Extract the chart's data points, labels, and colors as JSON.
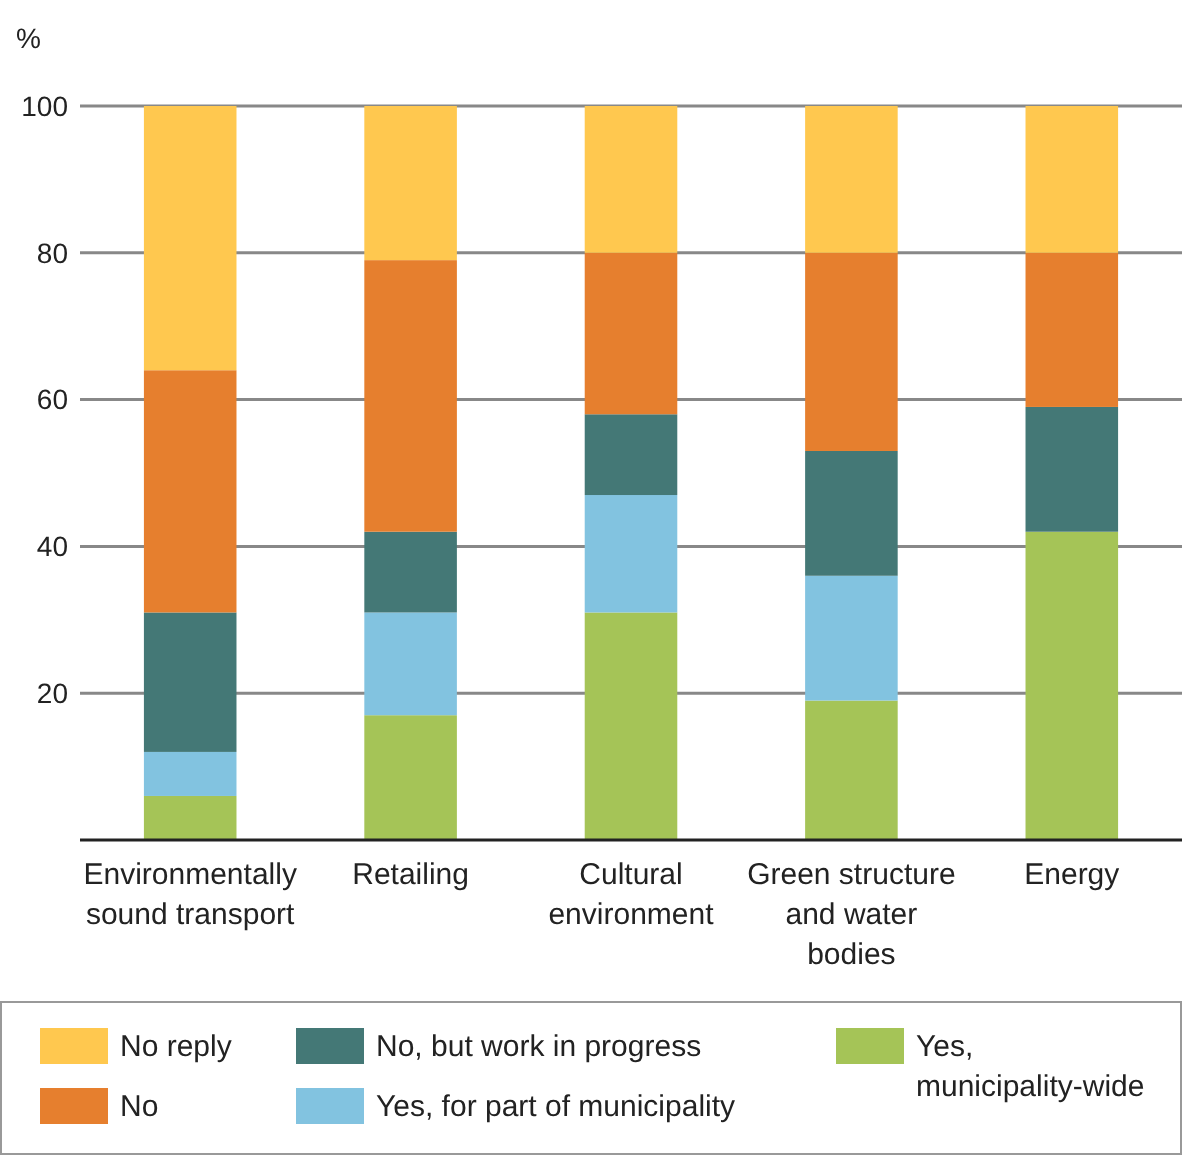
{
  "chart_data": {
    "type": "bar",
    "stacked": true,
    "ylabel": "%",
    "categories": [
      "Environmentally sound transport",
      "Retailing",
      "Cultural environment",
      "Green structure and water bodies",
      "Energy"
    ],
    "series": [
      {
        "name": "Yes, municipality-wide",
        "color": "#a5c457",
        "values": [
          6,
          17,
          31,
          19,
          42
        ]
      },
      {
        "name": "Yes, for part of municipality",
        "color": "#82c3e0",
        "values": [
          6,
          14,
          16,
          17,
          0
        ]
      },
      {
        "name": "No, but work in progress",
        "color": "#447876",
        "values": [
          19,
          11,
          11,
          17,
          17
        ]
      },
      {
        "name": "No",
        "color": "#e67f2e",
        "values": [
          33,
          37,
          22,
          27,
          21
        ]
      },
      {
        "name": "No reply",
        "color": "#ffc84f",
        "values": [
          36,
          21,
          20,
          20,
          20
        ]
      }
    ],
    "ylim": [
      0,
      100
    ],
    "yticks": [
      20,
      40,
      60,
      80,
      100
    ],
    "grid": "y",
    "legend": "bottom"
  }
}
